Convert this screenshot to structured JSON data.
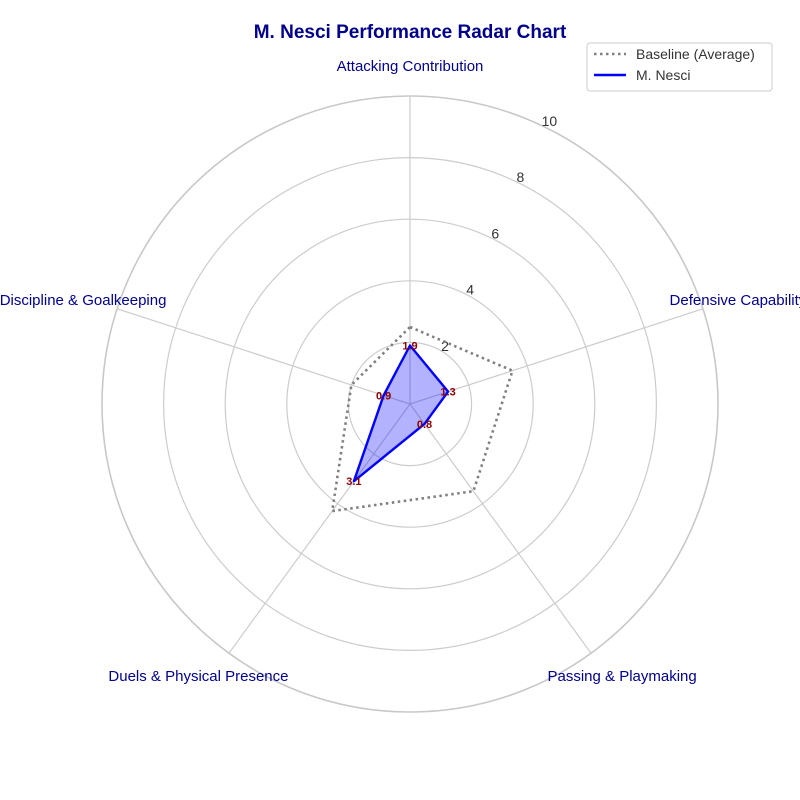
{
  "chart_data": {
    "type": "radar",
    "title": "M. Nesci Performance Radar Chart",
    "axes": [
      "Attacking Contribution",
      "Defensive Capability",
      "Passing & Playmaking",
      "Duels & Physical Presence",
      "Discipline & Goalkeeping"
    ],
    "rlim": [
      0,
      10
    ],
    "r_ticks": [
      2,
      4,
      6,
      8,
      10
    ],
    "series": [
      {
        "name": "Baseline (Average)",
        "values": [
          2.5,
          3.5,
          3.5,
          4.3,
          2.0
        ],
        "color": "#808080",
        "style": "dotted"
      },
      {
        "name": "M. Nesci",
        "values": [
          1.9,
          1.3,
          0.8,
          3.1,
          0.9
        ],
        "value_labels": [
          "1.9",
          "1.3",
          "0.8",
          "3.1",
          "0.9"
        ],
        "color": "#0000ff",
        "fill": "#0000ff",
        "fill_opacity": 0.3,
        "style": "solid"
      }
    ],
    "legend": {
      "position": "top-right"
    },
    "grid": true
  }
}
